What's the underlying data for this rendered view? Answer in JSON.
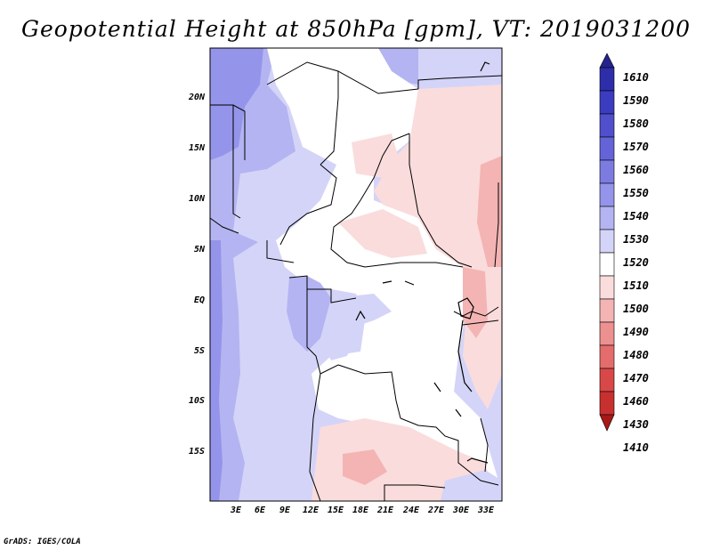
{
  "title": "Geopotential Height at 850hPa [gpm], VT: 2019031200",
  "credit": "GrADS: IGES/COLA",
  "axes": {
    "y_ticks": [
      "20N",
      "15N",
      "10N",
      "5N",
      "EQ",
      "5S",
      "10S",
      "15S"
    ],
    "x_ticks": [
      "3E",
      "6E",
      "9E",
      "12E",
      "15E",
      "18E",
      "21E",
      "24E",
      "27E",
      "30E",
      "33E"
    ]
  },
  "colorbar": {
    "levels": [
      "1610",
      "1590",
      "1580",
      "1570",
      "1560",
      "1550",
      "1540",
      "1530",
      "1520",
      "1510",
      "1500",
      "1490",
      "1480",
      "1470",
      "1460",
      "1430",
      "1410"
    ],
    "colors": [
      "#24248e",
      "#2e2eaa",
      "#3c3cc0",
      "#5050cc",
      "#6464d8",
      "#7c7ce0",
      "#9494ea",
      "#b4b4f2",
      "#d4d4f8",
      "#ffffff",
      "#fadcdc",
      "#f4b4b4",
      "#ec9090",
      "#e46c6c",
      "#d84848",
      "#c83030",
      "#a81818"
    ]
  },
  "colors": {
    "background": "#ffffff",
    "deep_blue": "#9494ea",
    "mid_blue": "#b4b4f2",
    "light_blue": "#d4d4f8",
    "pink": "#fadcdc",
    "rose": "#f4b4b4"
  }
}
